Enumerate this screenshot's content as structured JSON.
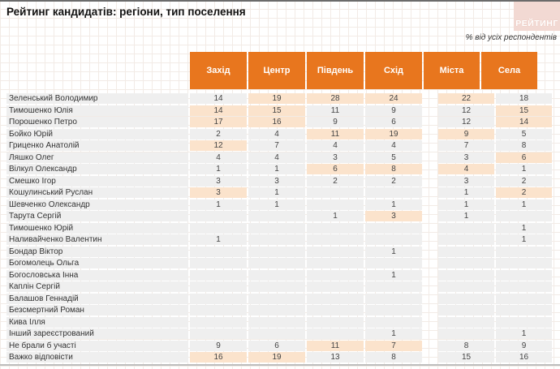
{
  "header": {
    "title": "Рейтинг кандидатів: регіони, тип поселення",
    "subtitle": "% від усіх респондентів",
    "logo_text": "РЕЙТИНГ"
  },
  "colors": {
    "accent_orange": "#e8761e",
    "highlight_peach": "#fbe3cc",
    "row_grey": "#efefef",
    "logo_pink": "#f2d9d3"
  },
  "table": {
    "columns": [
      "Захід",
      "Центр",
      "Південь",
      "Схід",
      "Міста",
      "Села"
    ],
    "rows": [
      {
        "name": "Зеленський Володимир",
        "values": [
          14,
          19,
          28,
          24,
          22,
          18
        ],
        "highlights": [
          0,
          1,
          1,
          1,
          1,
          0
        ]
      },
      {
        "name": "Тимошенко Юлія",
        "values": [
          14,
          15,
          11,
          9,
          12,
          15
        ],
        "highlights": [
          1,
          1,
          0,
          0,
          0,
          1
        ]
      },
      {
        "name": "Порошенко Петро",
        "values": [
          17,
          16,
          9,
          6,
          12,
          14
        ],
        "highlights": [
          1,
          1,
          0,
          0,
          0,
          1
        ]
      },
      {
        "name": "Бойко Юрій",
        "values": [
          2,
          4,
          11,
          19,
          9,
          5
        ],
        "highlights": [
          0,
          0,
          1,
          1,
          1,
          0
        ]
      },
      {
        "name": "Гриценко Анатолій",
        "values": [
          12,
          7,
          4,
          4,
          7,
          8
        ],
        "highlights": [
          1,
          0,
          0,
          0,
          0,
          0
        ]
      },
      {
        "name": "Ляшко Олег",
        "values": [
          4,
          4,
          3,
          5,
          3,
          6
        ],
        "highlights": [
          0,
          0,
          0,
          0,
          0,
          1
        ]
      },
      {
        "name": "Вілкул Олександр",
        "values": [
          1,
          1,
          6,
          8,
          4,
          1
        ],
        "highlights": [
          0,
          0,
          1,
          1,
          1,
          0
        ]
      },
      {
        "name": "Смешко Ігор",
        "values": [
          3,
          3,
          2,
          2,
          3,
          2
        ],
        "highlights": [
          0,
          0,
          0,
          0,
          0,
          0
        ]
      },
      {
        "name": "Кошулинський Руслан",
        "values": [
          3,
          1,
          "",
          "",
          1,
          2
        ],
        "highlights": [
          1,
          0,
          0,
          0,
          0,
          1
        ]
      },
      {
        "name": "Шевченко Олександр",
        "values": [
          1,
          1,
          "",
          1,
          1,
          1
        ],
        "highlights": [
          0,
          0,
          0,
          0,
          0,
          0
        ]
      },
      {
        "name": "Тарута Сергій",
        "values": [
          "",
          "",
          1,
          3,
          1,
          ""
        ],
        "highlights": [
          0,
          0,
          0,
          1,
          0,
          0
        ]
      },
      {
        "name": "Тимошенко Юрій",
        "values": [
          "",
          "",
          "",
          "",
          "",
          1
        ],
        "highlights": [
          0,
          0,
          0,
          0,
          0,
          0
        ]
      },
      {
        "name": "Наливайченко Валентин",
        "values": [
          1,
          "",
          "",
          "",
          "",
          1
        ],
        "highlights": [
          0,
          0,
          0,
          0,
          0,
          0
        ]
      },
      {
        "name": "Бондар Віктор",
        "values": [
          "",
          "",
          "",
          1,
          "",
          ""
        ],
        "highlights": [
          0,
          0,
          0,
          0,
          0,
          0
        ]
      },
      {
        "name": "Богомолець Ольга",
        "values": [
          "",
          "",
          "",
          "",
          "",
          ""
        ],
        "highlights": [
          0,
          0,
          0,
          0,
          0,
          0
        ]
      },
      {
        "name": "Богословська Інна",
        "values": [
          "",
          "",
          "",
          1,
          "",
          ""
        ],
        "highlights": [
          0,
          0,
          0,
          0,
          0,
          0
        ]
      },
      {
        "name": "Каплін Сергій",
        "values": [
          "",
          "",
          "",
          "",
          "",
          ""
        ],
        "highlights": [
          0,
          0,
          0,
          0,
          0,
          0
        ]
      },
      {
        "name": "Балашов Геннадій",
        "values": [
          "",
          "",
          "",
          "",
          "",
          ""
        ],
        "highlights": [
          0,
          0,
          0,
          0,
          0,
          0
        ]
      },
      {
        "name": "Безсмертний Роман",
        "values": [
          "",
          "",
          "",
          "",
          "",
          ""
        ],
        "highlights": [
          0,
          0,
          0,
          0,
          0,
          0
        ]
      },
      {
        "name": "Кива Ілля",
        "values": [
          "",
          "",
          "",
          "",
          "",
          ""
        ],
        "highlights": [
          0,
          0,
          0,
          0,
          0,
          0
        ]
      },
      {
        "name": "Інший зареєстрований",
        "values": [
          "",
          "",
          "",
          1,
          "",
          1
        ],
        "highlights": [
          0,
          0,
          0,
          0,
          0,
          0
        ]
      },
      {
        "name": "Не брали б участі",
        "values": [
          9,
          6,
          11,
          7,
          8,
          9
        ],
        "highlights": [
          0,
          0,
          1,
          1,
          0,
          0
        ]
      },
      {
        "name": "Важко відповісти",
        "values": [
          16,
          19,
          13,
          8,
          15,
          16
        ],
        "highlights": [
          1,
          1,
          0,
          0,
          0,
          0
        ]
      }
    ]
  }
}
